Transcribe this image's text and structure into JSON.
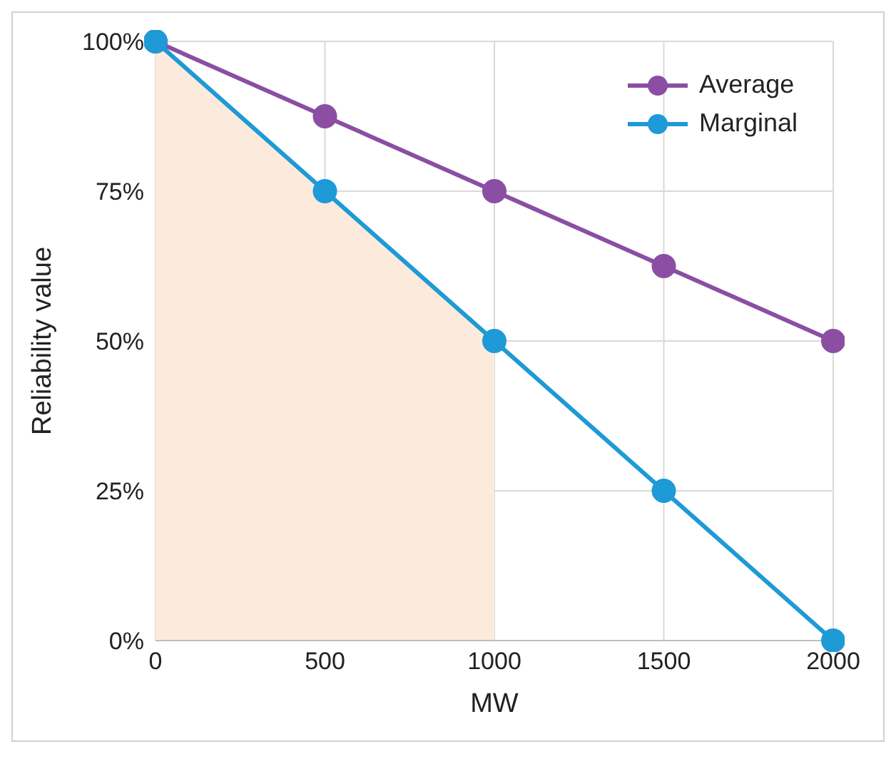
{
  "chart_data": {
    "type": "line",
    "xlabel": "MW",
    "ylabel": "Reliability value",
    "x": [
      0,
      500,
      1000,
      1500,
      2000
    ],
    "series": [
      {
        "type": "area",
        "color": "#fcebdc",
        "x": [
          0,
          500,
          1000
        ],
        "values": [
          100,
          75,
          50
        ]
      },
      {
        "name": "Average",
        "marker": "circle",
        "color": "#8b4ea3",
        "values": [
          100,
          87.5,
          75,
          62.5,
          50
        ]
      },
      {
        "name": "Marginal",
        "marker": "circle",
        "color": "#1e9ad6",
        "values": [
          100,
          75,
          50,
          25,
          0
        ]
      }
    ],
    "xlim": [
      0,
      2000
    ],
    "xticks": [
      0,
      500,
      1000,
      1500,
      2000
    ],
    "ylim": [
      0,
      100
    ],
    "yticks": [
      {
        "value": 0,
        "label": "0%"
      },
      {
        "value": 25,
        "label": "25%"
      },
      {
        "value": 50,
        "label": "50%"
      },
      {
        "value": 75,
        "label": "75%"
      },
      {
        "value": 100,
        "label": "100%"
      }
    ],
    "grid": true,
    "legend": "top right",
    "line_style": "solid"
  }
}
